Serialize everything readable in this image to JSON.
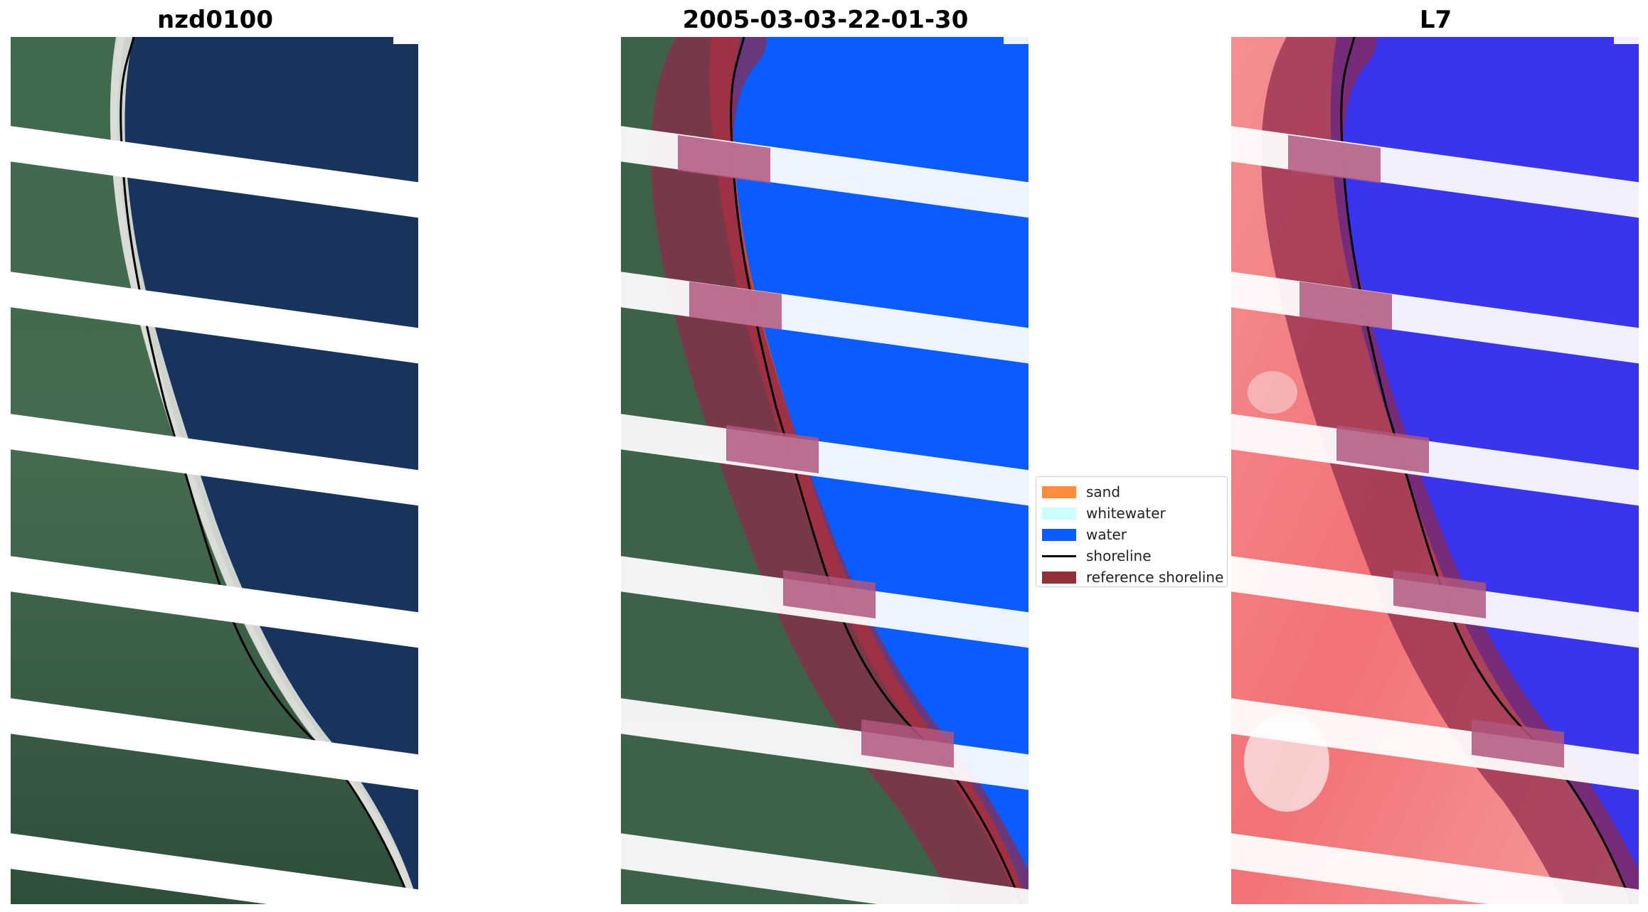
{
  "panels": [
    {
      "title": "nzd0100",
      "mode": "rgb"
    },
    {
      "title": "2005-03-03-22-01-30",
      "mode": "classified"
    },
    {
      "title": "L7",
      "mode": "index"
    }
  ],
  "legend": {
    "items": [
      {
        "label": "sand",
        "color": "#ff8c3a",
        "kind": "patch"
      },
      {
        "label": "whitewater",
        "color": "#ccffff",
        "kind": "patch"
      },
      {
        "label": "water",
        "color": "#0a5cff",
        "kind": "patch"
      },
      {
        "label": "shoreline",
        "color": "#000000",
        "kind": "line"
      },
      {
        "label": "reference shoreline",
        "color": "#93303a",
        "kind": "patch"
      }
    ]
  },
  "colors": {
    "sea_rgb": "#17325a",
    "land_rgb": "#3b5e45",
    "sand_rgb": "#d9dcd6",
    "water_class": "#0a5cff",
    "land_index": "#f47b7f",
    "water_index": "#3a34ee",
    "reference_band": "#8e2a4a",
    "scanline_gap": "#ffffff"
  }
}
